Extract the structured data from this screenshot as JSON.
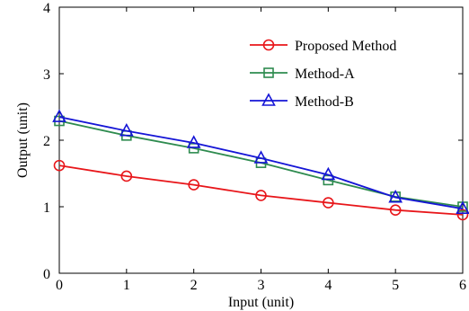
{
  "chart_data": {
    "type": "line",
    "title": "",
    "xlabel": "Input (unit)",
    "ylabel": "Output (unit)",
    "xlim": [
      0,
      6
    ],
    "ylim": [
      0,
      4
    ],
    "x_ticks": [
      "0",
      "1",
      "2",
      "3",
      "4",
      "5",
      "6"
    ],
    "y_ticks": [
      "0",
      "1",
      "2",
      "3",
      "4"
    ],
    "grid": false,
    "legend_position": "top-right",
    "x": [
      0,
      1,
      2,
      3,
      4,
      5,
      6
    ],
    "series": [
      {
        "name": "Proposed Method",
        "color": "#e8161a",
        "marker": "circle",
        "values": [
          1.62,
          1.46,
          1.33,
          1.17,
          1.06,
          0.95,
          0.88
        ]
      },
      {
        "name": "Method-A",
        "color": "#2e8b4f",
        "marker": "square",
        "values": [
          2.29,
          2.07,
          1.88,
          1.66,
          1.4,
          1.15,
          1.0
        ]
      },
      {
        "name": "Method-B",
        "color": "#1515d6",
        "marker": "triangle",
        "values": [
          2.35,
          2.14,
          1.96,
          1.73,
          1.48,
          1.14,
          0.97
        ]
      }
    ]
  }
}
